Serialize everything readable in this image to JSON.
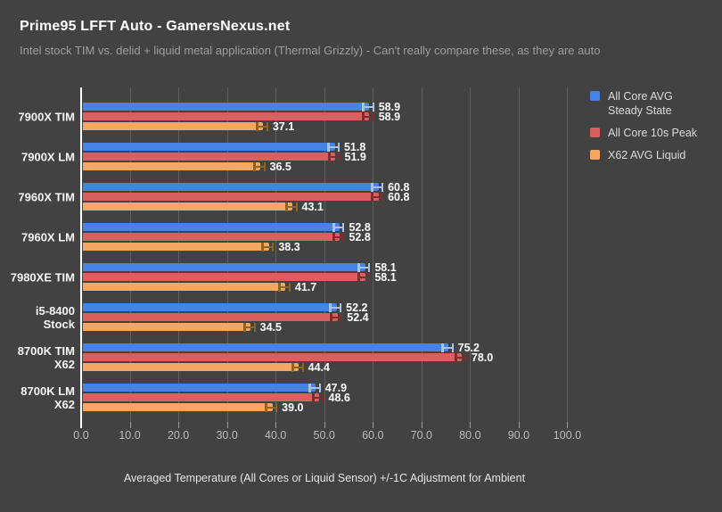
{
  "header": {
    "title": "Prime95 LFFT Auto - GamersNexus.net",
    "subtitle": "Intel stock TIM vs. delid + liquid metal application (Thermal Grizzly) - Can't really compare these, as they are auto"
  },
  "chart_data": {
    "type": "bar",
    "orientation": "horizontal",
    "title": "Prime95 LFFT Auto - GamersNexus.net",
    "subtitle": "Intel stock TIM vs. delid + liquid metal application (Thermal Grizzly) - Can't really compare these, as they are auto",
    "xlabel": "Averaged Temperature (All Cores or Liquid Sensor) +/-1C Adjustment for Ambient",
    "ylabel": "",
    "xlim": [
      0,
      100
    ],
    "xticks": [
      "0.0",
      "10.0",
      "20.0",
      "30.0",
      "40.0",
      "50.0",
      "60.0",
      "70.0",
      "80.0",
      "90.0",
      "100.0"
    ],
    "grid": true,
    "legend_position": "right",
    "error_margin": 1.0,
    "categories": [
      "7900X TIM",
      "7900X LM",
      "7960X TIM",
      "7960X LM",
      "7980XE TIM",
      "i5-8400\nStock",
      "8700K TIM\nX62",
      "8700K LM\nX62"
    ],
    "series": [
      {
        "name": "All Core AVG Steady State",
        "legend_label": "All Core AVG\nSteady State",
        "color": "#4584e4",
        "error_color": "#a9c2e8",
        "values": [
          58.9,
          51.8,
          60.8,
          52.8,
          58.1,
          52.2,
          75.2,
          47.9
        ]
      },
      {
        "name": "All Core 10s Peak",
        "legend_label": "All Core 10s Peak",
        "color": "#dc5f5f",
        "error_color": "#7e2c2c",
        "values": [
          58.9,
          51.9,
          60.8,
          52.8,
          58.1,
          52.4,
          78.0,
          48.6
        ]
      },
      {
        "name": "X62 AVG Liquid",
        "legend_label": "X62 AVG Liquid",
        "color": "#f4a763",
        "error_color": "#8f661f",
        "values": [
          37.1,
          36.5,
          43.1,
          38.3,
          41.7,
          34.5,
          44.4,
          39.0
        ]
      }
    ]
  },
  "colors": {
    "background": "#424242",
    "gridline": "#5f5f5f",
    "zero_axis": "#ffffff",
    "tick_label": "#bdbdbd",
    "category_label": "#f5f5f5",
    "value_label": "#ffffff",
    "legend_text": "#dcdcdc"
  }
}
